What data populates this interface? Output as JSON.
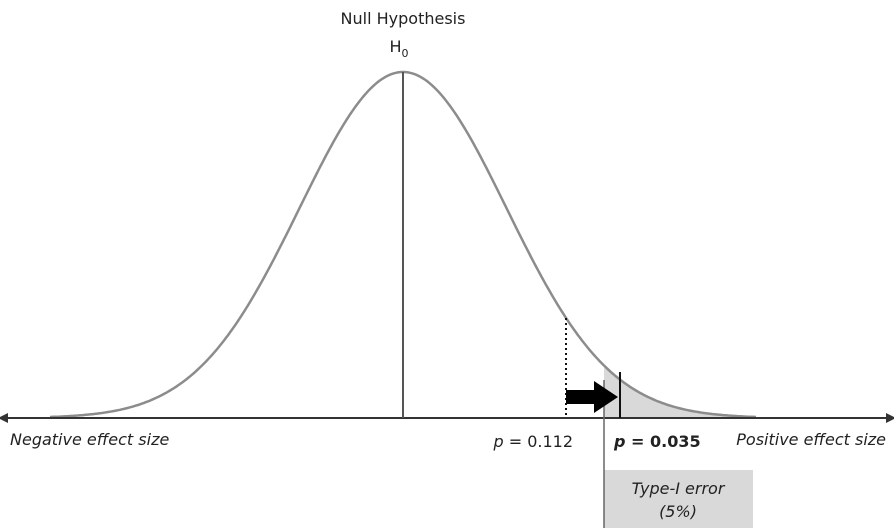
{
  "title": {
    "line1": "Null Hypothesis",
    "symbol": "H",
    "subscript": "0"
  },
  "axis": {
    "left_label": "Negative effect size",
    "right_label": "Positive effect size"
  },
  "p_labels": [
    {
      "symbol": "p",
      "text": " = 0.112"
    },
    {
      "symbol": "p",
      "text": " = 0.035"
    }
  ],
  "region": {
    "line1": "Type-I error",
    "line2": "(5%)"
  }
}
